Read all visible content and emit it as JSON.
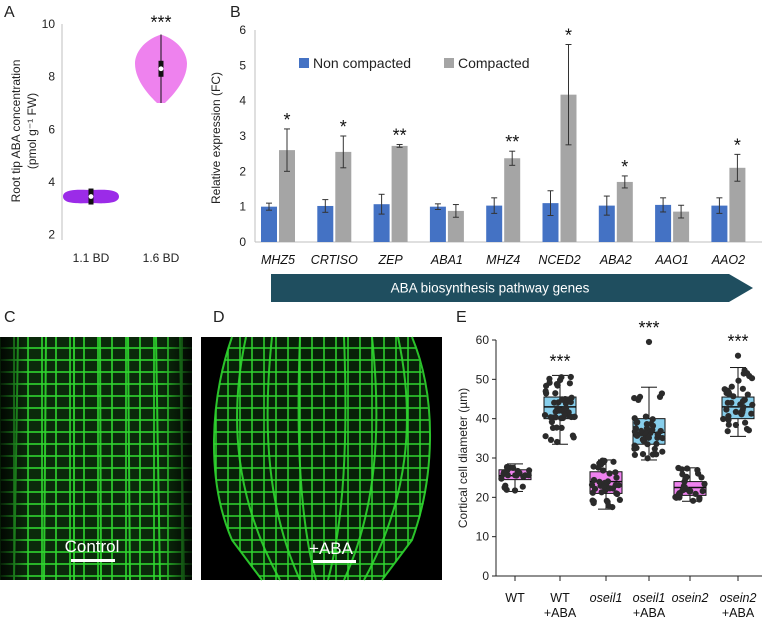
{
  "panel_labels": {
    "a": "A",
    "b": "B",
    "c": "C",
    "d": "D",
    "e": "E"
  },
  "colors": {
    "violin_1_1": "#9b2be8",
    "violin_1_6": "#ee82ee",
    "non_compacted": "#4472c4",
    "compacted": "#a5a5a5",
    "arrow": "#1f4e5f",
    "micrograph_green": "#2fd62f",
    "box_untreated": "#ee82ee",
    "box_aba": "#87ceeb",
    "dots": "#2b2b2b"
  },
  "images": {
    "c": {
      "label": "Control"
    },
    "d": {
      "label": "+ABA"
    }
  },
  "arrow_label": "ABA biosynthesis pathway genes",
  "chart_data": [
    {
      "panel": "A",
      "type": "violin",
      "ylabel_line1": "Root tip ABA concentration",
      "ylabel_line2": "(pmol g⁻¹ FW)",
      "ylim": [
        1.8,
        10
      ],
      "yticks": [
        2,
        4,
        6,
        8,
        10
      ],
      "categories": [
        "1.1 BD",
        "1.6 BD"
      ],
      "median": [
        3.45,
        8.3
      ],
      "range": [
        [
          3.2,
          3.7
        ],
        [
          7.0,
          9.6
        ]
      ],
      "significance": [
        "",
        "***"
      ]
    },
    {
      "panel": "B",
      "type": "bar",
      "ylabel": "Relative expression (FC)",
      "ylim": [
        0,
        6
      ],
      "yticks": [
        0,
        1,
        2,
        3,
        4,
        5,
        6
      ],
      "categories": [
        "MHZ5",
        "CRTISO",
        "ZEP",
        "ABA1",
        "MHZ4",
        "NCED2",
        "ABA2",
        "AAO1",
        "AAO2"
      ],
      "series": [
        {
          "name": "Non compacted",
          "values": [
            1.0,
            1.02,
            1.07,
            1.0,
            1.03,
            1.1,
            1.03,
            1.05,
            1.03
          ],
          "errors": [
            0.1,
            0.18,
            0.28,
            0.08,
            0.22,
            0.35,
            0.27,
            0.2,
            0.22
          ]
        },
        {
          "name": "Compacted",
          "values": [
            2.6,
            2.55,
            2.72,
            0.88,
            2.37,
            4.17,
            1.7,
            0.86,
            2.1
          ],
          "errors": [
            0.6,
            0.45,
            0.04,
            0.18,
            0.2,
            1.42,
            0.17,
            0.18,
            0.38
          ]
        }
      ],
      "significance": [
        "*",
        "*",
        "**",
        "",
        "**",
        "*",
        "*",
        "",
        "*"
      ],
      "legend_position": "top"
    },
    {
      "panel": "E",
      "type": "box",
      "ylabel": "Cortical cell diameter (µm)",
      "ylim": [
        0,
        60
      ],
      "yticks": [
        0,
        10,
        20,
        30,
        40,
        50,
        60
      ],
      "categories": [
        {
          "line1": "WT",
          "line2": "",
          "italic": false
        },
        {
          "line1": "WT",
          "line2": "+ABA",
          "italic": false
        },
        {
          "line1": "oseil1",
          "line2": "",
          "italic": true
        },
        {
          "line1": "oseil1",
          "line2": "+ABA",
          "italic": true
        },
        {
          "line1": "osein2",
          "line2": "",
          "italic": true
        },
        {
          "line1": "osein2",
          "line2": "+ABA",
          "italic": true
        }
      ],
      "treatment": [
        "none",
        "aba",
        "none",
        "aba",
        "none",
        "aba"
      ],
      "boxes": [
        {
          "min": 21.5,
          "q1": 24.5,
          "median": 25.5,
          "q3": 27,
          "max": 28.5
        },
        {
          "min": 33.5,
          "q1": 40,
          "median": 43,
          "q3": 45.5,
          "max": 51
        },
        {
          "min": 17,
          "q1": 21,
          "median": 24,
          "q3": 26.5,
          "max": 29.5
        },
        {
          "min": 29.5,
          "q1": 33.5,
          "median": 36.5,
          "q3": 40,
          "max": 48
        },
        {
          "min": 19,
          "q1": 20.5,
          "median": 22.5,
          "q3": 24,
          "max": 27.5
        },
        {
          "min": 35.5,
          "q1": 40,
          "median": 43,
          "q3": 45.5,
          "max": 53
        }
      ],
      "n_points": [
        24,
        50,
        40,
        46,
        28,
        38
      ],
      "outliers": [
        [],
        [],
        [],
        [
          59.5
        ],
        [],
        [
          56
        ]
      ],
      "significance": [
        "",
        "***",
        "",
        "***",
        "",
        "***"
      ]
    }
  ]
}
